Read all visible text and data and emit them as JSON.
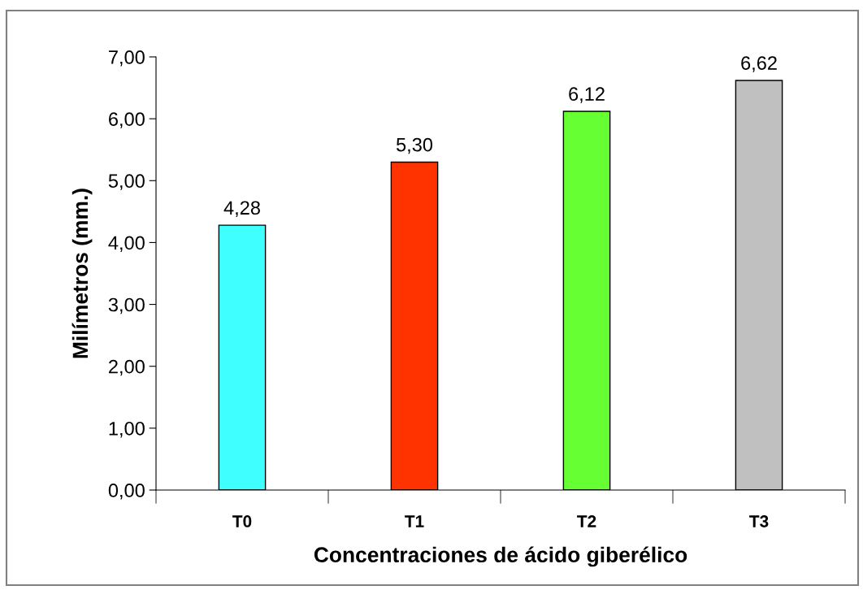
{
  "chart_data": {
    "type": "bar",
    "xlabel": "Concentraciones de ácido giberélico",
    "ylabel": "Milímetros (mm.)",
    "categories": [
      "T0",
      "T1",
      "T2",
      "T3"
    ],
    "values": [
      4.28,
      5.3,
      6.12,
      6.62
    ],
    "colors": [
      "#40ffff",
      "#ff3300",
      "#66ff33",
      "#c0c0c0"
    ],
    "value_labels": [
      "4,28",
      "5,30",
      "6,12",
      "6,62"
    ],
    "ylim": [
      0,
      7
    ],
    "yticks": [
      {
        "value": 0,
        "label": "0,00"
      },
      {
        "value": 1,
        "label": "1,00"
      },
      {
        "value": 2,
        "label": "2,00"
      },
      {
        "value": 3,
        "label": "3,00"
      },
      {
        "value": 4,
        "label": "4,00"
      },
      {
        "value": 5,
        "label": "5,00"
      },
      {
        "value": 6,
        "label": "6,00"
      },
      {
        "value": 7,
        "label": "7,00"
      }
    ],
    "grid": false
  }
}
